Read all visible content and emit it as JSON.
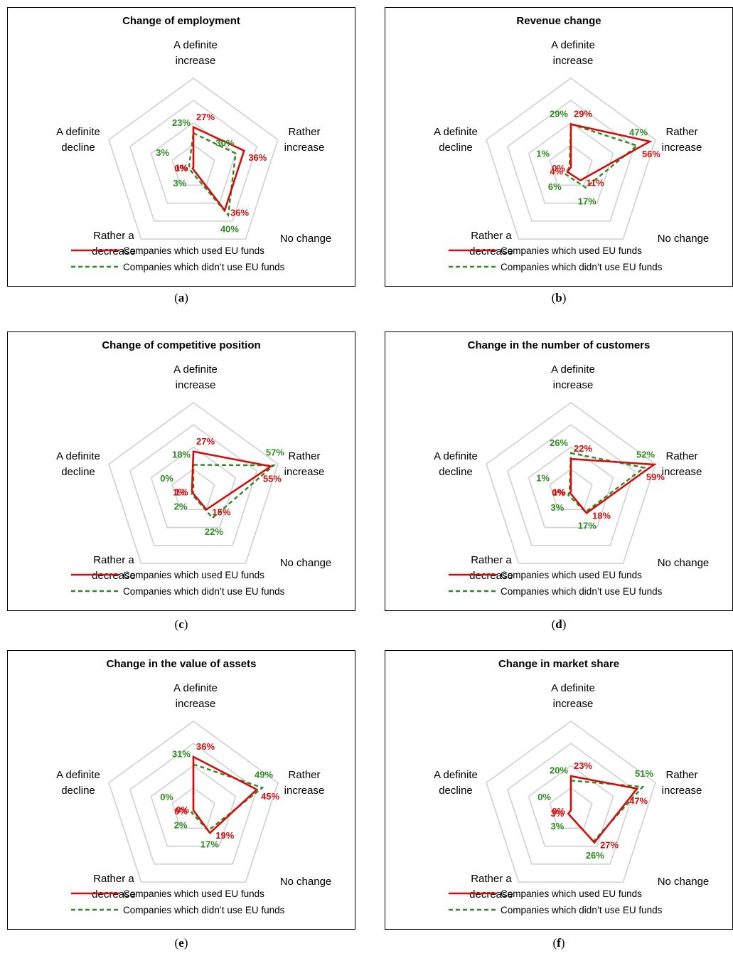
{
  "colors": {
    "used": "#d10f0f",
    "not_used": "#2e8b23",
    "grid": "#d0d0d0"
  },
  "axes": [
    "A definite increase",
    "Rather increase",
    "No change",
    "Rather a decrease",
    "A definite decline"
  ],
  "axis_labels": {
    "A definite increase": [
      "A definite",
      "increase"
    ],
    "Rather increase": [
      "Rather",
      "increase"
    ],
    "No change": [
      "No change"
    ],
    "Rather a decrease": [
      "Rather a",
      "decrease"
    ],
    "A definite decline": [
      "A definite",
      "decline"
    ]
  },
  "legend": {
    "used": "Companies which used EU funds",
    "not_used": "Companies which didn’t use EU funds"
  },
  "chart_data": [
    {
      "type": "radar",
      "caption": "a",
      "title": "Change of employment",
      "categories": [
        "A definite increase",
        "Rather increase",
        "No change",
        "Rather a decrease",
        "A definite decline"
      ],
      "range": [
        0,
        60
      ],
      "series": [
        {
          "name": "Companies which used EU funds",
          "values": [
            27,
            36,
            36,
            1,
            0
          ]
        },
        {
          "name": "Companies which didn’t use EU funds",
          "values": [
            23,
            30,
            40,
            3,
            3
          ]
        }
      ]
    },
    {
      "type": "radar",
      "caption": "b",
      "title": "Revenue change",
      "categories": [
        "A definite increase",
        "Rather increase",
        "No change",
        "Rather a decrease",
        "A definite decline"
      ],
      "range": [
        0,
        60
      ],
      "series": [
        {
          "name": "Companies which used EU funds",
          "values": [
            29,
            56,
            11,
            4,
            0
          ]
        },
        {
          "name": "Companies which didn’t use EU funds",
          "values": [
            29,
            47,
            17,
            6,
            1
          ]
        }
      ]
    },
    {
      "type": "radar",
      "caption": "c",
      "title": "Change of competitive position",
      "categories": [
        "A definite increase",
        "Rather increase",
        "No change",
        "Rather a decrease",
        "A definite decline"
      ],
      "range": [
        0,
        60
      ],
      "series": [
        {
          "name": "Companies which used EU funds",
          "values": [
            27,
            55,
            15,
            1,
            1
          ]
        },
        {
          "name": "Companies which didn’t use EU funds",
          "values": [
            18,
            57,
            22,
            2,
            0
          ]
        }
      ]
    },
    {
      "type": "radar",
      "caption": "d",
      "title": "Change in the number of customers",
      "categories": [
        "A definite increase",
        "Rather increase",
        "No change",
        "Rather a decrease",
        "A definite decline"
      ],
      "range": [
        0,
        60
      ],
      "series": [
        {
          "name": "Companies which used EU funds",
          "values": [
            22,
            59,
            18,
            1,
            0
          ]
        },
        {
          "name": "Companies which didn’t use EU funds",
          "values": [
            26,
            52,
            17,
            3,
            1
          ]
        }
      ]
    },
    {
      "type": "radar",
      "caption": "e",
      "title": "Change in the value of assets",
      "categories": [
        "A definite increase",
        "Rather increase",
        "No change",
        "Rather a decrease",
        "A definite decline"
      ],
      "range": [
        0,
        60
      ],
      "series": [
        {
          "name": "Companies which used EU funds",
          "values": [
            36,
            45,
            19,
            0,
            0
          ]
        },
        {
          "name": "Companies which didn’t use EU funds",
          "values": [
            31,
            49,
            17,
            2,
            0
          ]
        }
      ]
    },
    {
      "type": "radar",
      "caption": "f",
      "title": "Change in market share",
      "categories": [
        "A definite increase",
        "Rather increase",
        "No change",
        "Rather a decrease",
        "A definite decline"
      ],
      "range": [
        0,
        60
      ],
      "series": [
        {
          "name": "Companies which used EU funds",
          "values": [
            23,
            47,
            27,
            3,
            0
          ]
        },
        {
          "name": "Companies which didn’t use EU funds",
          "values": [
            20,
            51,
            26,
            3,
            0
          ]
        }
      ]
    }
  ]
}
